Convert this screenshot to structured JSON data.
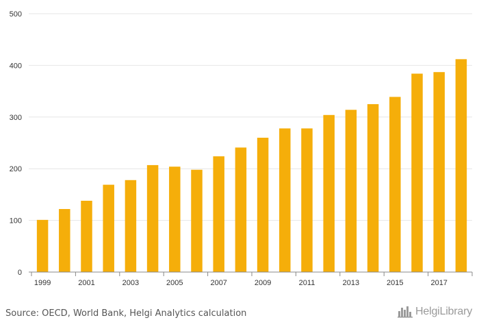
{
  "chart_data": {
    "type": "bar",
    "categories": [
      "1999",
      "2000",
      "2001",
      "2002",
      "2003",
      "2004",
      "2005",
      "2006",
      "2007",
      "2008",
      "2009",
      "2010",
      "2011",
      "2012",
      "2013",
      "2014",
      "2015",
      "2016",
      "2017",
      "2018"
    ],
    "x_tick_labels": [
      "1999",
      "2001",
      "2003",
      "2005",
      "2007",
      "2009",
      "2011",
      "2013",
      "2015",
      "2017"
    ],
    "values": [
      101,
      122,
      138,
      169,
      178,
      207,
      204,
      198,
      224,
      241,
      260,
      278,
      278,
      304,
      314,
      325,
      339,
      384,
      387,
      412
    ],
    "ylim": [
      0,
      500
    ],
    "y_ticks": [
      0,
      100,
      200,
      300,
      400,
      500
    ],
    "title": "",
    "xlabel": "",
    "ylabel": "",
    "grid": true,
    "bar_color": "#F5AE0A"
  },
  "footer": {
    "source": "Source: OECD, World Bank, Helgi Analytics calculation",
    "logo": "HelgiLibrary"
  }
}
